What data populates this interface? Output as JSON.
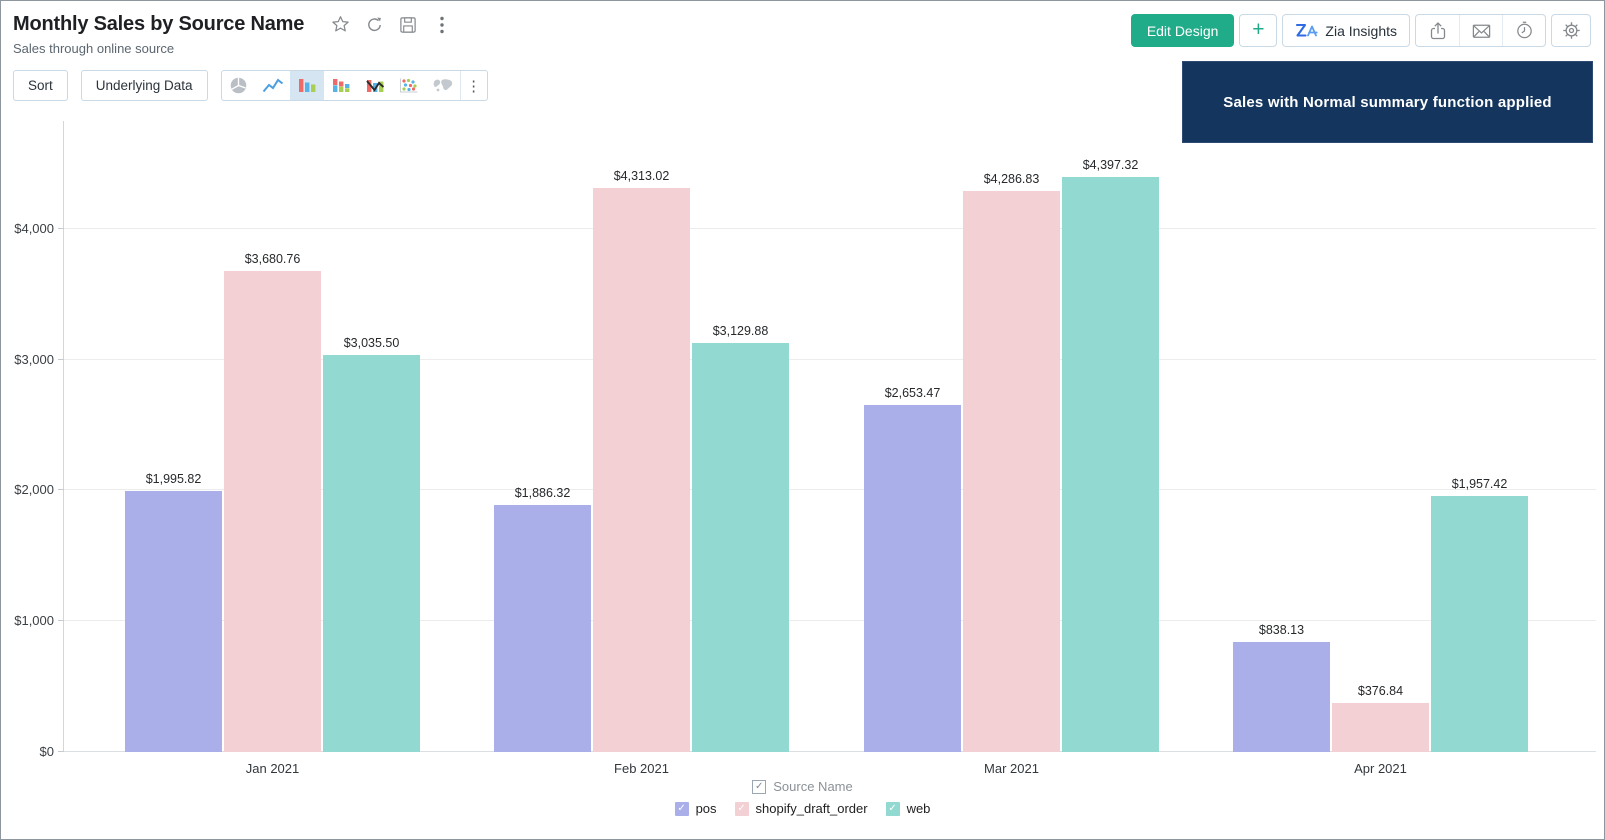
{
  "header": {
    "title": "Monthly Sales by Source Name",
    "subtitle": "Sales through online source",
    "actions": {
      "edit_design": "Edit Design",
      "add": "+",
      "zia_insights": "Zia Insights"
    }
  },
  "toolbar": {
    "sort": "Sort",
    "underlying_data": "Underlying Data",
    "chart_types": [
      "pie",
      "line",
      "bar",
      "stacked-bar",
      "combination",
      "scatter",
      "map",
      "more"
    ],
    "selected_chart_type": "bar",
    "more_label": "⋮"
  },
  "banner": {
    "text": "Sales with Normal summary function applied",
    "background": "#13355e"
  },
  "chart_data": {
    "type": "bar",
    "title": "Monthly Sales by Source Name",
    "categories": [
      "Jan 2021",
      "Feb 2021",
      "Mar 2021",
      "Apr 2021"
    ],
    "series": [
      {
        "name": "pos",
        "color": "#aaafea",
        "values": [
          1995.82,
          1886.32,
          2653.47,
          838.13
        ],
        "labels": [
          "$1,995.82",
          "$1,886.32",
          "$2,653.47",
          "$838.13"
        ]
      },
      {
        "name": "shopify_draft_order",
        "color": "#f2d0d3",
        "values": [
          3680.76,
          4313.02,
          4286.83,
          376.84
        ],
        "labels": [
          "$3,680.76",
          "$4,313.02",
          "$4,286.83",
          "$376.84"
        ]
      },
      {
        "name": "web",
        "color": "#92d9d2",
        "values": [
          3035.5,
          3129.88,
          4397.32,
          1957.42
        ],
        "labels": [
          "$3,035.50",
          "$3,129.88",
          "$4,397.32",
          "$1,957.42"
        ]
      }
    ],
    "y_ticks": [
      {
        "value": 0,
        "label": "$0"
      },
      {
        "value": 1000,
        "label": "$1,000"
      },
      {
        "value": 2000,
        "label": "$2,000"
      },
      {
        "value": 3000,
        "label": "$3,000"
      },
      {
        "value": 4000,
        "label": "$4,000"
      }
    ],
    "ylim": [
      0,
      4826
    ],
    "grid": true,
    "xlabel": "",
    "ylabel": "",
    "legend_position": "bottom",
    "legend_title": "Source Name",
    "checkmark": "✓"
  }
}
